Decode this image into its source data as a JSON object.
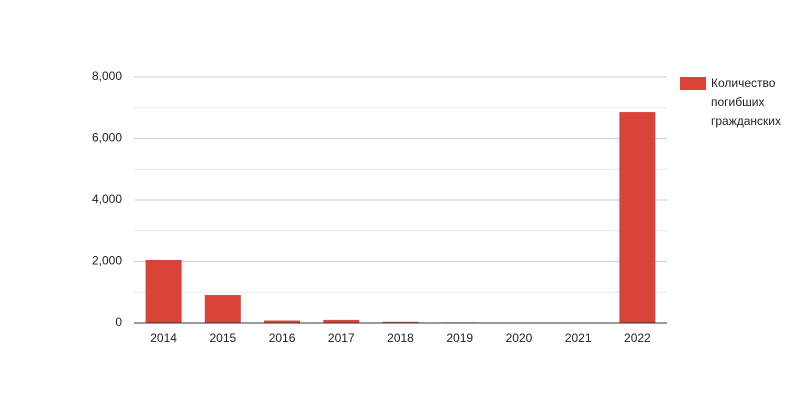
{
  "chart_data": {
    "type": "bar",
    "categories": [
      "2014",
      "2015",
      "2016",
      "2017",
      "2018",
      "2019",
      "2020",
      "2021",
      "2022"
    ],
    "series": [
      {
        "name": "Количество погибших гражданских",
        "color": "#d9433a",
        "values": [
          2050,
          910,
          80,
          100,
          40,
          20,
          15,
          10,
          6860
        ]
      }
    ],
    "ylim": [
      0,
      8000
    ],
    "yticks": [
      0,
      {
        "value": 2000,
        "label": "2,000"
      },
      {
        "value": 4000,
        "label": "4,000"
      },
      {
        "value": 6000,
        "label": "6,000"
      },
      {
        "value": 8000,
        "label": "8,000"
      }
    ],
    "minor_gridlines": [
      1000,
      3000,
      5000,
      7000
    ],
    "grid": true,
    "legend": "right"
  }
}
